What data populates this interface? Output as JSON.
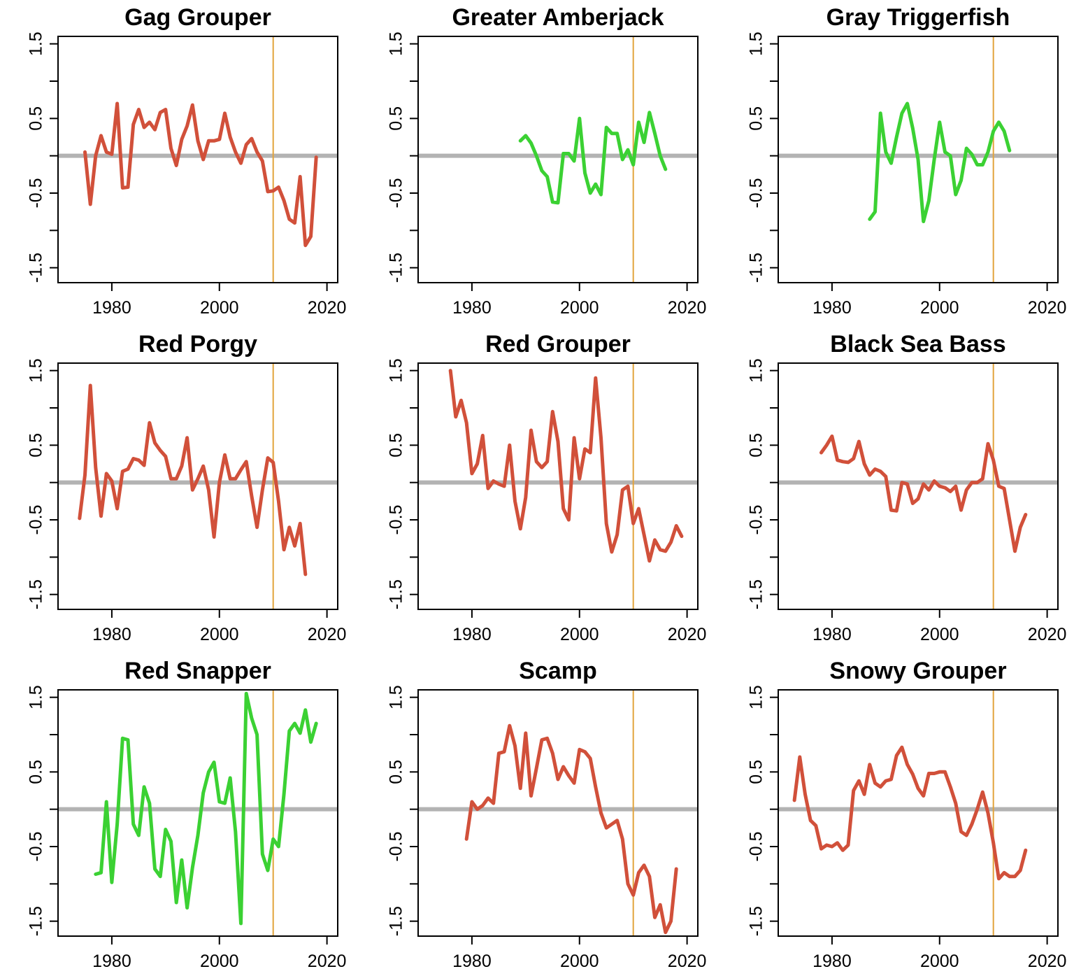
{
  "figure": {
    "colors": {
      "decline": "#d1503a",
      "increase": "#3bd133",
      "zero_line": "#b3b3b3",
      "ref_line": "#e2a43c",
      "axis": "#000000"
    }
  },
  "chart_data": [
    {
      "type": "line",
      "title": "Gag Grouper",
      "trend": "decline",
      "xlim": [
        1970,
        2022
      ],
      "ylim": [
        -1.7,
        1.6
      ],
      "xticks": [
        1980,
        2000,
        2020
      ],
      "xtick_labels": [
        "1980",
        "2000",
        "2020"
      ],
      "yticks": [
        1.5,
        1.0,
        0.5,
        0.0,
        -0.5,
        -1.0,
        -1.5
      ],
      "ytick_labels": [
        "1.5",
        "0.5",
        "-0.5",
        "-1.5"
      ],
      "ref_year": 2010,
      "x": [
        1975,
        1976,
        1977,
        1978,
        1979,
        1980,
        1981,
        1982,
        1983,
        1984,
        1985,
        1986,
        1987,
        1988,
        1989,
        1990,
        1991,
        1992,
        1993,
        1994,
        1995,
        1996,
        1997,
        1998,
        1999,
        2000,
        2001,
        2002,
        2003,
        2004,
        2005,
        2006,
        2007,
        2008,
        2009,
        2010,
        2011,
        2012,
        2013,
        2014,
        2015,
        2016,
        2017,
        2018
      ],
      "y": [
        0.05,
        -0.65,
        0.0,
        0.27,
        0.05,
        0.02,
        0.7,
        -0.43,
        -0.42,
        0.42,
        0.62,
        0.38,
        0.45,
        0.35,
        0.58,
        0.62,
        0.1,
        -0.13,
        0.22,
        0.4,
        0.68,
        0.2,
        -0.05,
        0.2,
        0.2,
        0.22,
        0.57,
        0.25,
        0.05,
        -0.1,
        0.15,
        0.23,
        0.05,
        -0.07,
        -0.48,
        -0.47,
        -0.42,
        -0.6,
        -0.85,
        -0.9,
        -0.28,
        -1.2,
        -1.08,
        -0.02
      ]
    },
    {
      "type": "line",
      "title": "Greater Amberjack",
      "trend": "increase",
      "xlim": [
        1970,
        2022
      ],
      "ylim": [
        -1.7,
        1.6
      ],
      "xticks": [
        1980,
        2000,
        2020
      ],
      "xtick_labels": [
        "1980",
        "2000",
        "2020"
      ],
      "yticks": [
        1.5,
        1.0,
        0.5,
        0.0,
        -0.5,
        -1.0,
        -1.5
      ],
      "ytick_labels": [
        "1.5",
        "0.5",
        "-0.5",
        "-1.5"
      ],
      "ref_year": 2010,
      "x": [
        1989,
        1990,
        1991,
        1992,
        1993,
        1994,
        1995,
        1996,
        1997,
        1998,
        1999,
        2000,
        2001,
        2002,
        2003,
        2004,
        2005,
        2006,
        2007,
        2008,
        2009,
        2010,
        2011,
        2012,
        2013,
        2014,
        2015,
        2016
      ],
      "y": [
        0.2,
        0.27,
        0.17,
        0.0,
        -0.2,
        -0.28,
        -0.62,
        -0.63,
        0.03,
        0.03,
        -0.07,
        0.5,
        -0.23,
        -0.5,
        -0.38,
        -0.52,
        0.38,
        0.3,
        0.3,
        -0.05,
        0.08,
        -0.12,
        0.45,
        0.18,
        0.58,
        0.3,
        0.0,
        -0.18
      ]
    },
    {
      "type": "line",
      "title": "Gray Triggerfish",
      "trend": "increase",
      "xlim": [
        1970,
        2022
      ],
      "ylim": [
        -1.7,
        1.6
      ],
      "xticks": [
        1980,
        2000,
        2020
      ],
      "xtick_labels": [
        "1980",
        "2000",
        "2020"
      ],
      "yticks": [
        1.5,
        1.0,
        0.5,
        0.0,
        -0.5,
        -1.0,
        -1.5
      ],
      "ytick_labels": [
        "1.5",
        "0.5",
        "-0.5",
        "-1.5"
      ],
      "ref_year": 2010,
      "x": [
        1987,
        1988,
        1989,
        1990,
        1991,
        1992,
        1993,
        1994,
        1995,
        1996,
        1997,
        1998,
        1999,
        2000,
        2001,
        2002,
        2003,
        2004,
        2005,
        2006,
        2007,
        2008,
        2009,
        2010,
        2011,
        2012,
        2013
      ],
      "y": [
        -0.85,
        -0.75,
        0.57,
        0.05,
        -0.1,
        0.25,
        0.57,
        0.7,
        0.37,
        -0.05,
        -0.88,
        -0.6,
        -0.05,
        0.45,
        0.05,
        0.0,
        -0.52,
        -0.33,
        0.1,
        0.02,
        -0.12,
        -0.12,
        0.05,
        0.33,
        0.45,
        0.33,
        0.07
      ]
    },
    {
      "type": "line",
      "title": "Red Porgy",
      "trend": "decline",
      "xlim": [
        1970,
        2022
      ],
      "ylim": [
        -1.7,
        1.6
      ],
      "xticks": [
        1980,
        2000,
        2020
      ],
      "xtick_labels": [
        "1980",
        "2000",
        "2020"
      ],
      "yticks": [
        1.5,
        1.0,
        0.5,
        0.0,
        -0.5,
        -1.0,
        -1.5
      ],
      "ytick_labels": [
        "1.5",
        "0.5",
        "-0.5",
        "-1.5"
      ],
      "ref_year": 2010,
      "x": [
        1974,
        1975,
        1976,
        1977,
        1978,
        1979,
        1980,
        1981,
        1982,
        1983,
        1984,
        1985,
        1986,
        1987,
        1988,
        1989,
        1990,
        1991,
        1992,
        1993,
        1994,
        1995,
        1996,
        1997,
        1998,
        1999,
        2000,
        2001,
        2002,
        2003,
        2004,
        2005,
        2006,
        2007,
        2008,
        2009,
        2010,
        2011,
        2012,
        2013,
        2014,
        2015,
        2016
      ],
      "y": [
        -0.48,
        0.1,
        1.3,
        0.2,
        -0.45,
        0.12,
        0.02,
        -0.35,
        0.15,
        0.18,
        0.32,
        0.3,
        0.23,
        0.8,
        0.53,
        0.43,
        0.35,
        0.05,
        0.05,
        0.22,
        0.6,
        -0.1,
        0.05,
        0.22,
        -0.1,
        -0.73,
        0.0,
        0.37,
        0.05,
        0.05,
        0.17,
        0.28,
        -0.18,
        -0.6,
        -0.1,
        0.33,
        0.27,
        -0.25,
        -0.9,
        -0.6,
        -0.85,
        -0.55,
        -1.23
      ]
    },
    {
      "type": "line",
      "title": "Red Grouper",
      "trend": "decline",
      "xlim": [
        1970,
        2022
      ],
      "ylim": [
        -1.7,
        1.6
      ],
      "xticks": [
        1980,
        2000,
        2020
      ],
      "xtick_labels": [
        "1980",
        "2000",
        "2020"
      ],
      "yticks": [
        1.5,
        1.0,
        0.5,
        0.0,
        -0.5,
        -1.0,
        -1.5
      ],
      "ytick_labels": [
        "1.5",
        "0.5",
        "-0.5",
        "-1.5"
      ],
      "ref_year": 2010,
      "x": [
        1976,
        1977,
        1978,
        1979,
        1980,
        1981,
        1982,
        1983,
        1984,
        1985,
        1986,
        1987,
        1988,
        1989,
        1990,
        1991,
        1992,
        1993,
        1994,
        1995,
        1996,
        1997,
        1998,
        1999,
        2000,
        2001,
        2002,
        2003,
        2004,
        2005,
        2006,
        2007,
        2008,
        2009,
        2010,
        2011,
        2012,
        2013,
        2014,
        2015,
        2016,
        2017,
        2018,
        2019
      ],
      "y": [
        1.5,
        0.88,
        1.1,
        0.8,
        0.12,
        0.25,
        0.63,
        -0.08,
        0.02,
        -0.02,
        -0.05,
        0.5,
        -0.25,
        -0.62,
        -0.2,
        0.7,
        0.28,
        0.2,
        0.28,
        0.95,
        0.55,
        -0.35,
        -0.5,
        0.6,
        0.05,
        0.45,
        0.4,
        1.4,
        0.6,
        -0.55,
        -0.93,
        -0.7,
        -0.1,
        -0.05,
        -0.55,
        -0.35,
        -0.7,
        -1.05,
        -0.77,
        -0.9,
        -0.92,
        -0.8,
        -0.58,
        -0.72
      ]
    },
    {
      "type": "line",
      "title": "Black Sea Bass",
      "trend": "decline",
      "xlim": [
        1970,
        2022
      ],
      "ylim": [
        -1.7,
        1.6
      ],
      "xticks": [
        1980,
        2000,
        2020
      ],
      "xtick_labels": [
        "1980",
        "2000",
        "2020"
      ],
      "yticks": [
        1.5,
        1.0,
        0.5,
        0.0,
        -0.5,
        -1.0,
        -1.5
      ],
      "ytick_labels": [
        "1.5",
        "0.5",
        "-0.5",
        "-1.5"
      ],
      "ref_year": 2010,
      "x": [
        1978,
        1979,
        1980,
        1981,
        1982,
        1983,
        1984,
        1985,
        1986,
        1987,
        1988,
        1989,
        1990,
        1991,
        1992,
        1993,
        1994,
        1995,
        1996,
        1997,
        1998,
        1999,
        2000,
        2001,
        2002,
        2003,
        2004,
        2005,
        2006,
        2007,
        2008,
        2009,
        2010,
        2011,
        2012,
        2013,
        2014,
        2015,
        2016
      ],
      "y": [
        0.4,
        0.5,
        0.62,
        0.3,
        0.28,
        0.27,
        0.32,
        0.55,
        0.25,
        0.1,
        0.18,
        0.15,
        0.08,
        -0.37,
        -0.38,
        0.0,
        -0.02,
        -0.28,
        -0.22,
        -0.02,
        -0.1,
        0.02,
        -0.05,
        -0.07,
        -0.12,
        -0.05,
        -0.37,
        -0.1,
        0.0,
        0.0,
        0.05,
        0.52,
        0.3,
        -0.05,
        -0.08,
        -0.5,
        -0.92,
        -0.6,
        -0.43
      ]
    },
    {
      "type": "line",
      "title": "Red Snapper",
      "trend": "increase",
      "xlim": [
        1970,
        2022
      ],
      "ylim": [
        -1.7,
        1.6
      ],
      "xticks": [
        1980,
        2000,
        2020
      ],
      "xtick_labels": [
        "1980",
        "2000",
        "2020"
      ],
      "yticks": [
        1.5,
        1.0,
        0.5,
        0.0,
        -0.5,
        -1.0,
        -1.5
      ],
      "ytick_labels": [
        "1.5",
        "0.5",
        "-0.5",
        "-1.5"
      ],
      "ref_year": 2010,
      "x": [
        1977,
        1978,
        1979,
        1980,
        1981,
        1982,
        1983,
        1984,
        1985,
        1986,
        1987,
        1988,
        1989,
        1990,
        1991,
        1992,
        1993,
        1994,
        1995,
        1996,
        1997,
        1998,
        1999,
        2000,
        2001,
        2002,
        2003,
        2004,
        2005,
        2006,
        2007,
        2008,
        2009,
        2010,
        2011,
        2012,
        2013,
        2014,
        2015,
        2016,
        2017,
        2018
      ],
      "y": [
        -0.87,
        -0.85,
        0.1,
        -0.98,
        -0.2,
        0.95,
        0.93,
        -0.2,
        -0.35,
        0.3,
        0.08,
        -0.8,
        -0.9,
        -0.27,
        -0.43,
        -1.25,
        -0.68,
        -1.32,
        -0.78,
        -0.35,
        0.22,
        0.5,
        0.63,
        0.1,
        0.08,
        0.42,
        -0.3,
        -1.53,
        1.55,
        1.22,
        1.0,
        -0.6,
        -0.82,
        -0.4,
        -0.5,
        0.2,
        1.05,
        1.15,
        1.02,
        1.33,
        0.9,
        1.15
      ]
    },
    {
      "type": "line",
      "title": "Scamp",
      "trend": "decline",
      "xlim": [
        1970,
        2022
      ],
      "ylim": [
        -1.7,
        1.6
      ],
      "xticks": [
        1980,
        2000,
        2020
      ],
      "xtick_labels": [
        "1980",
        "2000",
        "2020"
      ],
      "yticks": [
        1.5,
        1.0,
        0.5,
        0.0,
        -0.5,
        -1.0,
        -1.5
      ],
      "ytick_labels": [
        "1.5",
        "0.5",
        "-0.5",
        "-1.5"
      ],
      "ref_year": 2010,
      "x": [
        1979,
        1980,
        1981,
        1982,
        1983,
        1984,
        1985,
        1986,
        1987,
        1988,
        1989,
        1990,
        1991,
        1992,
        1993,
        1994,
        1995,
        1996,
        1997,
        1998,
        1999,
        2000,
        2001,
        2002,
        2003,
        2004,
        2005,
        2006,
        2007,
        2008,
        2009,
        2010,
        2011,
        2012,
        2013,
        2014,
        2015,
        2016,
        2017,
        2018
      ],
      "y": [
        -0.4,
        0.1,
        0.0,
        0.05,
        0.15,
        0.08,
        0.75,
        0.77,
        1.12,
        0.85,
        0.28,
        1.02,
        0.18,
        0.55,
        0.93,
        0.95,
        0.75,
        0.4,
        0.57,
        0.45,
        0.35,
        0.8,
        0.77,
        0.68,
        0.3,
        -0.05,
        -0.25,
        -0.2,
        -0.15,
        -0.4,
        -1.0,
        -1.15,
        -0.85,
        -0.75,
        -0.9,
        -1.45,
        -1.28,
        -1.65,
        -1.5,
        -0.8
      ]
    },
    {
      "type": "line",
      "title": "Snowy Grouper",
      "trend": "decline",
      "xlim": [
        1970,
        2022
      ],
      "ylim": [
        -1.7,
        1.6
      ],
      "xticks": [
        1980,
        2000,
        2020
      ],
      "xtick_labels": [
        "1980",
        "2000",
        "2020"
      ],
      "yticks": [
        1.5,
        1.0,
        0.5,
        0.0,
        -0.5,
        -1.0,
        -1.5
      ],
      "ytick_labels": [
        "1.5",
        "0.5",
        "-0.5",
        "-1.5"
      ],
      "ref_year": 2010,
      "x": [
        1973,
        1974,
        1975,
        1976,
        1977,
        1978,
        1979,
        1980,
        1981,
        1982,
        1983,
        1984,
        1985,
        1986,
        1987,
        1988,
        1989,
        1990,
        1991,
        1992,
        1993,
        1994,
        1995,
        1996,
        1997,
        1998,
        1999,
        2000,
        2001,
        2002,
        2003,
        2004,
        2005,
        2006,
        2007,
        2008,
        2009,
        2010,
        2011,
        2012,
        2013,
        2014,
        2015,
        2016
      ],
      "y": [
        0.12,
        0.7,
        0.2,
        -0.15,
        -0.22,
        -0.53,
        -0.48,
        -0.5,
        -0.45,
        -0.55,
        -0.48,
        0.25,
        0.38,
        0.2,
        0.6,
        0.35,
        0.3,
        0.38,
        0.4,
        0.72,
        0.83,
        0.6,
        0.47,
        0.28,
        0.18,
        0.48,
        0.48,
        0.5,
        0.5,
        0.3,
        0.08,
        -0.3,
        -0.35,
        -0.2,
        0.0,
        0.23,
        -0.05,
        -0.45,
        -0.93,
        -0.85,
        -0.9,
        -0.9,
        -0.82,
        -0.55
      ]
    }
  ]
}
